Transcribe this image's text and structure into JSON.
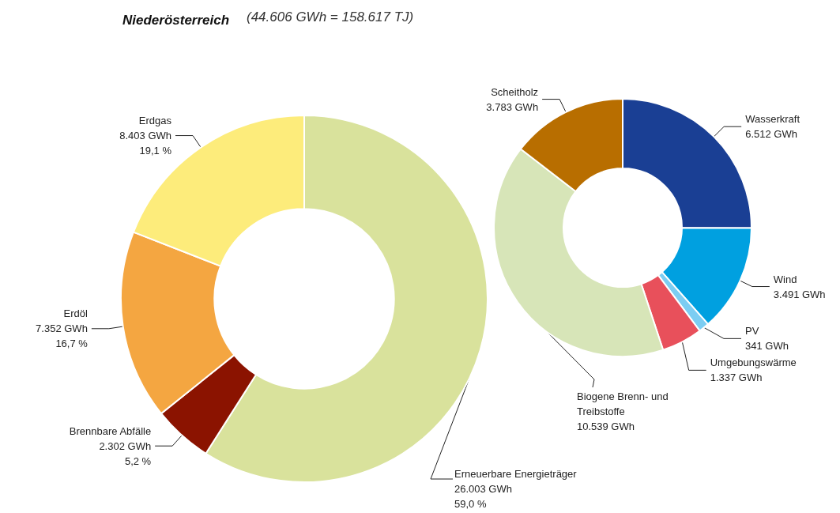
{
  "chart_data": [
    {
      "type": "donut",
      "title": "Niederösterreich",
      "subtitle": "(44.606 GWh = 158.617 TJ)",
      "categories": [
        "Erneuerbare Energieträger",
        "Brennbare Abfälle",
        "Erdöl",
        "Erdgas"
      ],
      "values": [
        26003,
        2302,
        7352,
        8403
      ],
      "value_labels": [
        "26.003 GWh\n59,0 %",
        "2.302 GWh\n5,2 %",
        "7.352 GWh\n16,7 %",
        "8.403 GWh\n19,1 %"
      ],
      "colors": [
        "#d9e29c",
        "#8b1300",
        "#f4a641",
        "#fdec7b"
      ]
    },
    {
      "type": "donut",
      "categories": [
        "Wasserkraft",
        "Wind",
        "PV",
        "Umgebungswärme",
        "Biogene Brenn- und\nTreibstoffe",
        "Scheitholz"
      ],
      "values": [
        6512,
        3491,
        341,
        1337,
        10539,
        3783
      ],
      "value_labels": [
        "6.512 GWh",
        "3.491 GWh",
        "341 GWh",
        "1.337 GWh",
        "10.539 GWh",
        "3.783 GWh"
      ],
      "colors": [
        "#1a3f94",
        "#00a0e0",
        "#7ccdf2",
        "#e8505b",
        "#d7e5b8",
        "#b86e00"
      ]
    }
  ]
}
